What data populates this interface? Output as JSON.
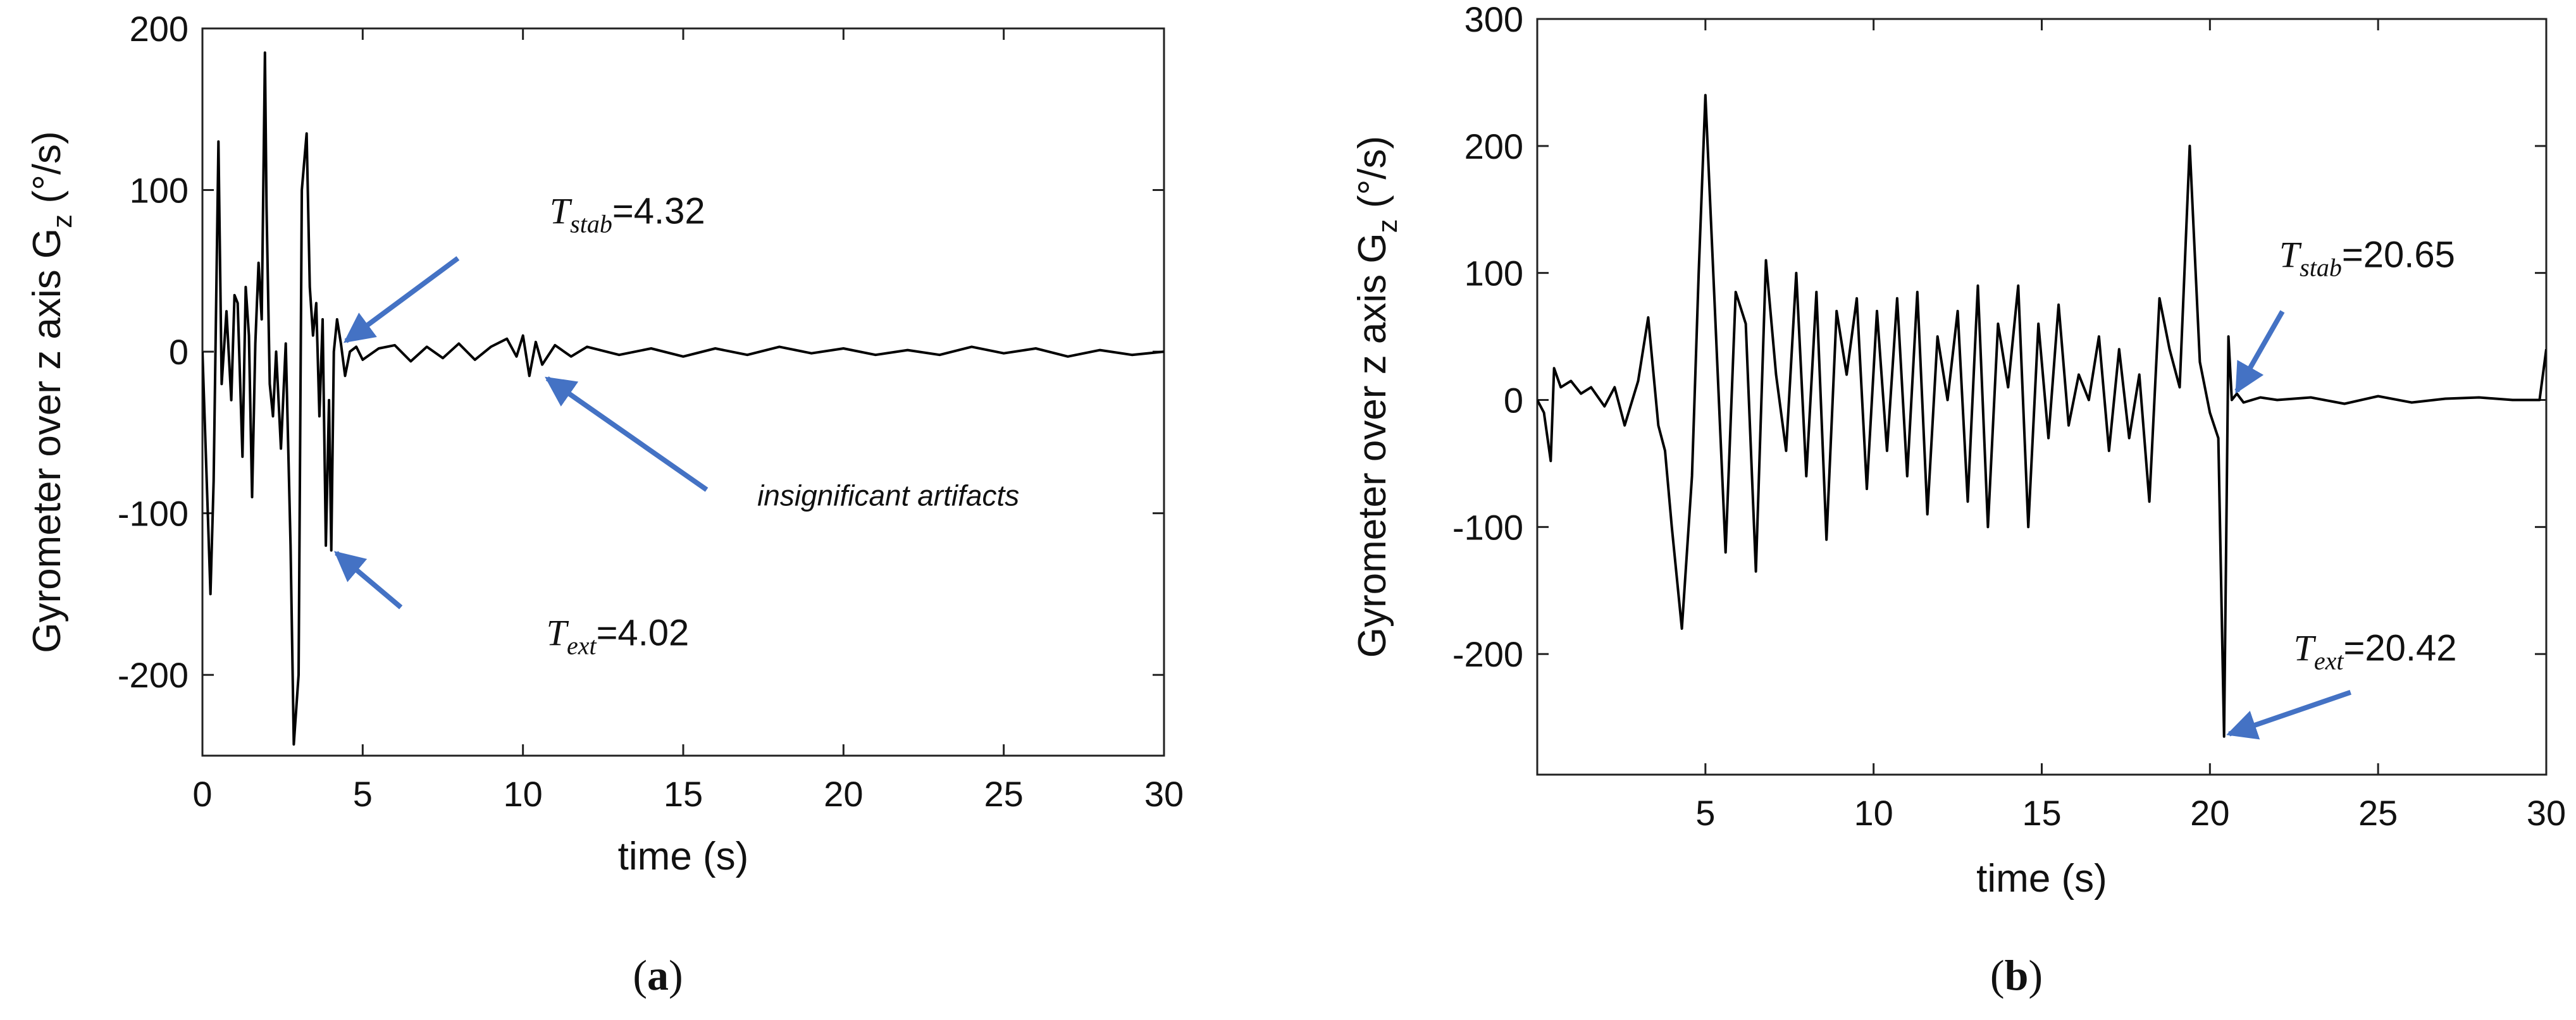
{
  "chart_data": [
    {
      "type": "line",
      "panel_label": "a",
      "xlabel": "time (s)",
      "ylabel_main": "Gyrometer over z axis G",
      "ylabel_sub": "z",
      "ylabel_unit": " (°/s)",
      "xlim": [
        0,
        30
      ],
      "ylim": [
        -250,
        200
      ],
      "xticks": [
        0,
        5,
        10,
        15,
        20,
        25,
        30
      ],
      "yticks": [
        -200,
        -100,
        0,
        100,
        200
      ],
      "x": [
        0.0,
        0.1,
        0.25,
        0.35,
        0.5,
        0.6,
        0.75,
        0.9,
        1.0,
        1.1,
        1.25,
        1.35,
        1.45,
        1.55,
        1.65,
        1.75,
        1.85,
        1.95,
        2.0,
        2.1,
        2.2,
        2.3,
        2.45,
        2.6,
        2.75,
        2.85,
        3.0,
        3.1,
        3.25,
        3.35,
        3.45,
        3.55,
        3.65,
        3.75,
        3.85,
        3.95,
        4.02,
        4.1,
        4.2,
        4.32,
        4.45,
        4.6,
        4.8,
        5.0,
        5.5,
        6.0,
        6.5,
        7.0,
        7.5,
        8.0,
        8.5,
        9.0,
        9.5,
        9.8,
        10.0,
        10.2,
        10.4,
        10.6,
        11.0,
        11.5,
        12.0,
        13.0,
        14.0,
        15.0,
        16.0,
        17.0,
        18.0,
        19.0,
        20.0,
        21.0,
        22.0,
        23.0,
        24.0,
        25.0,
        26.0,
        27.0,
        28.0,
        29.0,
        30.0
      ],
      "y": [
        0,
        -60,
        -150,
        -80,
        130,
        -20,
        25,
        -30,
        35,
        30,
        -65,
        40,
        10,
        -90,
        5,
        55,
        20,
        185,
        90,
        -20,
        -40,
        0,
        -60,
        5,
        -120,
        -243,
        -200,
        100,
        135,
        40,
        10,
        30,
        -40,
        20,
        -120,
        -30,
        -123,
        0,
        20,
        5,
        -15,
        0,
        3,
        -5,
        2,
        4,
        -6,
        3,
        -4,
        5,
        -5,
        3,
        8,
        -3,
        10,
        -15,
        6,
        -8,
        4,
        -3,
        3,
        -2,
        2,
        -3,
        2,
        -2,
        3,
        -1,
        2,
        -2,
        1,
        -2,
        3,
        -1,
        2,
        -3,
        1,
        -2,
        0
      ],
      "annotations": [
        {
          "main": "T",
          "sub": "stab",
          "value": "=4.32",
          "x": 4.32,
          "y": 5
        },
        {
          "main": "T",
          "sub": "ext",
          "value": "=4.02",
          "x": 4.02,
          "y": -123
        },
        {
          "text": "insignificant artifacts",
          "x": 10.6,
          "y": -15
        }
      ]
    },
    {
      "type": "line",
      "panel_label": "b",
      "xlabel": "time (s)",
      "ylabel_main": "Gyrometer over z axis G",
      "ylabel_sub": "z",
      "ylabel_unit": " (°/s)",
      "xlim": [
        0,
        30
      ],
      "ylim": [
        -295,
        300
      ],
      "xticks": [
        5,
        10,
        15,
        20,
        25,
        30
      ],
      "yticks": [
        -200,
        -100,
        0,
        100,
        200,
        300
      ],
      "x": [
        0.0,
        0.2,
        0.4,
        0.5,
        0.7,
        1.0,
        1.3,
        1.6,
        2.0,
        2.3,
        2.6,
        3.0,
        3.3,
        3.6,
        3.8,
        4.0,
        4.3,
        4.6,
        4.8,
        5.0,
        5.3,
        5.6,
        5.9,
        6.2,
        6.5,
        6.8,
        7.1,
        7.4,
        7.7,
        8.0,
        8.3,
        8.6,
        8.9,
        9.2,
        9.5,
        9.8,
        10.1,
        10.4,
        10.7,
        11.0,
        11.3,
        11.6,
        11.9,
        12.2,
        12.5,
        12.8,
        13.1,
        13.4,
        13.7,
        14.0,
        14.3,
        14.6,
        14.9,
        15.2,
        15.5,
        15.8,
        16.1,
        16.4,
        16.7,
        17.0,
        17.3,
        17.6,
        17.9,
        18.2,
        18.5,
        18.8,
        19.1,
        19.4,
        19.7,
        20.0,
        20.25,
        20.42,
        20.55,
        20.65,
        20.8,
        21.0,
        21.5,
        22.0,
        23.0,
        24.0,
        25.0,
        26.0,
        27.0,
        28.0,
        29.0,
        29.8,
        30.0
      ],
      "y": [
        0,
        -10,
        -48,
        25,
        10,
        15,
        5,
        10,
        -5,
        10,
        -20,
        15,
        65,
        -20,
        -40,
        -100,
        -180,
        -60,
        100,
        240,
        60,
        -120,
        85,
        60,
        -135,
        110,
        20,
        -40,
        100,
        -60,
        85,
        -110,
        70,
        20,
        80,
        -70,
        70,
        -40,
        80,
        -60,
        85,
        -90,
        50,
        0,
        70,
        -80,
        90,
        -100,
        60,
        10,
        90,
        -100,
        60,
        -30,
        75,
        -20,
        20,
        0,
        50,
        -40,
        40,
        -30,
        20,
        -80,
        80,
        40,
        10,
        200,
        30,
        -10,
        -30,
        -265,
        50,
        0,
        5,
        -2,
        2,
        0,
        2,
        -3,
        3,
        -2,
        1,
        2,
        0,
        0,
        40
      ],
      "annotations": [
        {
          "main": "T",
          "sub": "stab",
          "value": "=20.65",
          "x": 20.65,
          "y": 5
        },
        {
          "main": "T",
          "sub": "ext",
          "value": "=20.42",
          "x": 20.42,
          "y": -265
        }
      ]
    }
  ]
}
